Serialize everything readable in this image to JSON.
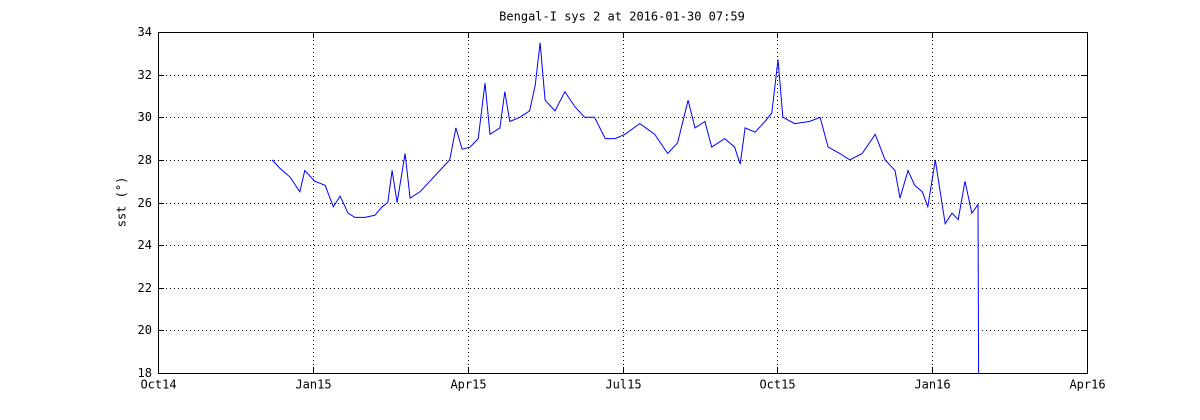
{
  "chart_data": {
    "type": "line",
    "title": "Bengal-I sys 2 at 2016-01-30 07:59",
    "y_label": "sst (°)",
    "x": [
      2014.934,
      2014.947,
      2014.963,
      2014.979,
      2014.987,
      2015.003,
      2015.02,
      2015.033,
      2015.044,
      2015.057,
      2015.068,
      2015.084,
      2015.1,
      2015.112,
      2015.121,
      2015.128,
      2015.136,
      2015.149,
      2015.157,
      2015.173,
      2015.189,
      2015.205,
      2015.221,
      2015.231,
      2015.241,
      2015.254,
      2015.267,
      2015.278,
      2015.286,
      2015.302,
      2015.31,
      2015.318,
      2015.334,
      2015.35,
      2015.359,
      2015.367,
      2015.375,
      2015.391,
      2015.407,
      2015.423,
      2015.439,
      2015.455,
      2015.472,
      2015.488,
      2015.504,
      2015.528,
      2015.552,
      2015.573,
      2015.589,
      2015.606,
      2015.617,
      2015.633,
      2015.644,
      2015.665,
      2015.681,
      2015.69,
      2015.698,
      2015.714,
      2015.73,
      2015.741,
      2015.751,
      2015.759,
      2015.778,
      2015.802,
      2015.819,
      2015.832,
      2015.851,
      2015.867,
      2015.887,
      2015.908,
      2015.924,
      2015.94,
      2015.948,
      2015.961,
      2015.972,
      2015.984,
      2015.993,
      2016.005,
      2016.013,
      2016.021,
      2016.032,
      2016.042,
      2016.053,
      2016.064,
      2016.074,
      2016.075
    ],
    "series": [
      {
        "name": "sst",
        "color": "#0000ff",
        "values": [
          28.0,
          27.6,
          27.2,
          26.5,
          27.5,
          27.0,
          26.8,
          25.8,
          26.3,
          25.5,
          25.3,
          25.3,
          25.4,
          25.8,
          26.0,
          27.5,
          26.0,
          28.3,
          26.2,
          26.5,
          27.0,
          27.5,
          28.0,
          29.5,
          28.5,
          28.6,
          29.0,
          31.6,
          29.2,
          29.5,
          31.2,
          29.8,
          30.0,
          30.3,
          31.5,
          33.5,
          30.8,
          30.3,
          31.2,
          30.5,
          30.0,
          30.0,
          29.0,
          29.0,
          29.2,
          29.7,
          29.2,
          28.3,
          28.8,
          30.8,
          29.5,
          29.8,
          28.6,
          29.0,
          28.6,
          27.8,
          29.5,
          29.3,
          29.8,
          30.2,
          32.7,
          30.0,
          29.7,
          29.8,
          30.0,
          28.6,
          28.3,
          28.0,
          28.3,
          29.2,
          28.0,
          27.5,
          26.2,
          27.5,
          26.8,
          26.5,
          25.8,
          28.0,
          26.5,
          25.0,
          25.5,
          25.2,
          27.0,
          25.5,
          25.9,
          18.0
        ]
      }
    ],
    "xlim": [
      2014.75,
      2016.25
    ],
    "xticks": [
      {
        "value": 2014.75,
        "label": "Oct14"
      },
      {
        "value": 2015.0,
        "label": "Jan15"
      },
      {
        "value": 2015.25,
        "label": "Apr15"
      },
      {
        "value": 2015.5,
        "label": "Jul15"
      },
      {
        "value": 2015.75,
        "label": "Oct15"
      },
      {
        "value": 2016.0,
        "label": "Jan16"
      },
      {
        "value": 2016.25,
        "label": "Apr16"
      }
    ],
    "ylim": [
      18,
      34
    ],
    "yticks": [
      18,
      20,
      22,
      24,
      26,
      28,
      30,
      32,
      34
    ],
    "grid": true
  }
}
